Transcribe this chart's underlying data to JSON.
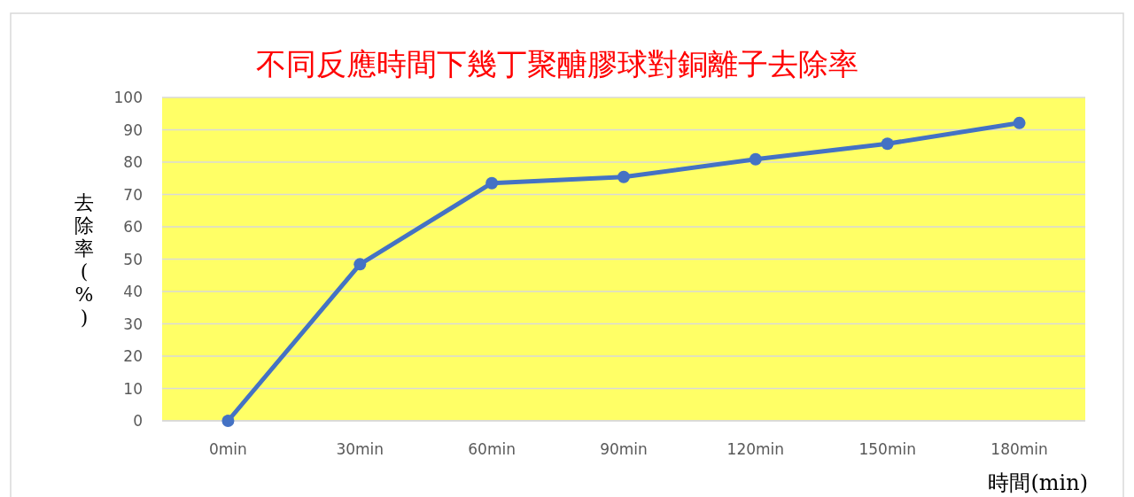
{
  "chart_data": {
    "type": "line",
    "title": "不同反應時間下幾丁聚醣膠球對銅離子去除率",
    "xlabel": "時間(min)",
    "ylabel": "去除率(%)",
    "categories": [
      "0min",
      "30min",
      "60min",
      "90min",
      "120min",
      "150min",
      "180min"
    ],
    "series": [
      {
        "color": "#4472c4",
        "values": [
          0,
          48.4,
          73.5,
          75.4,
          80.9,
          85.7,
          92.1
        ]
      }
    ],
    "ylim": [
      0,
      100
    ],
    "yticks": [
      0,
      10,
      20,
      30,
      40,
      50,
      60,
      70,
      80,
      90,
      100
    ],
    "grid": "y",
    "marker": "circle",
    "line_style": "solid"
  }
}
